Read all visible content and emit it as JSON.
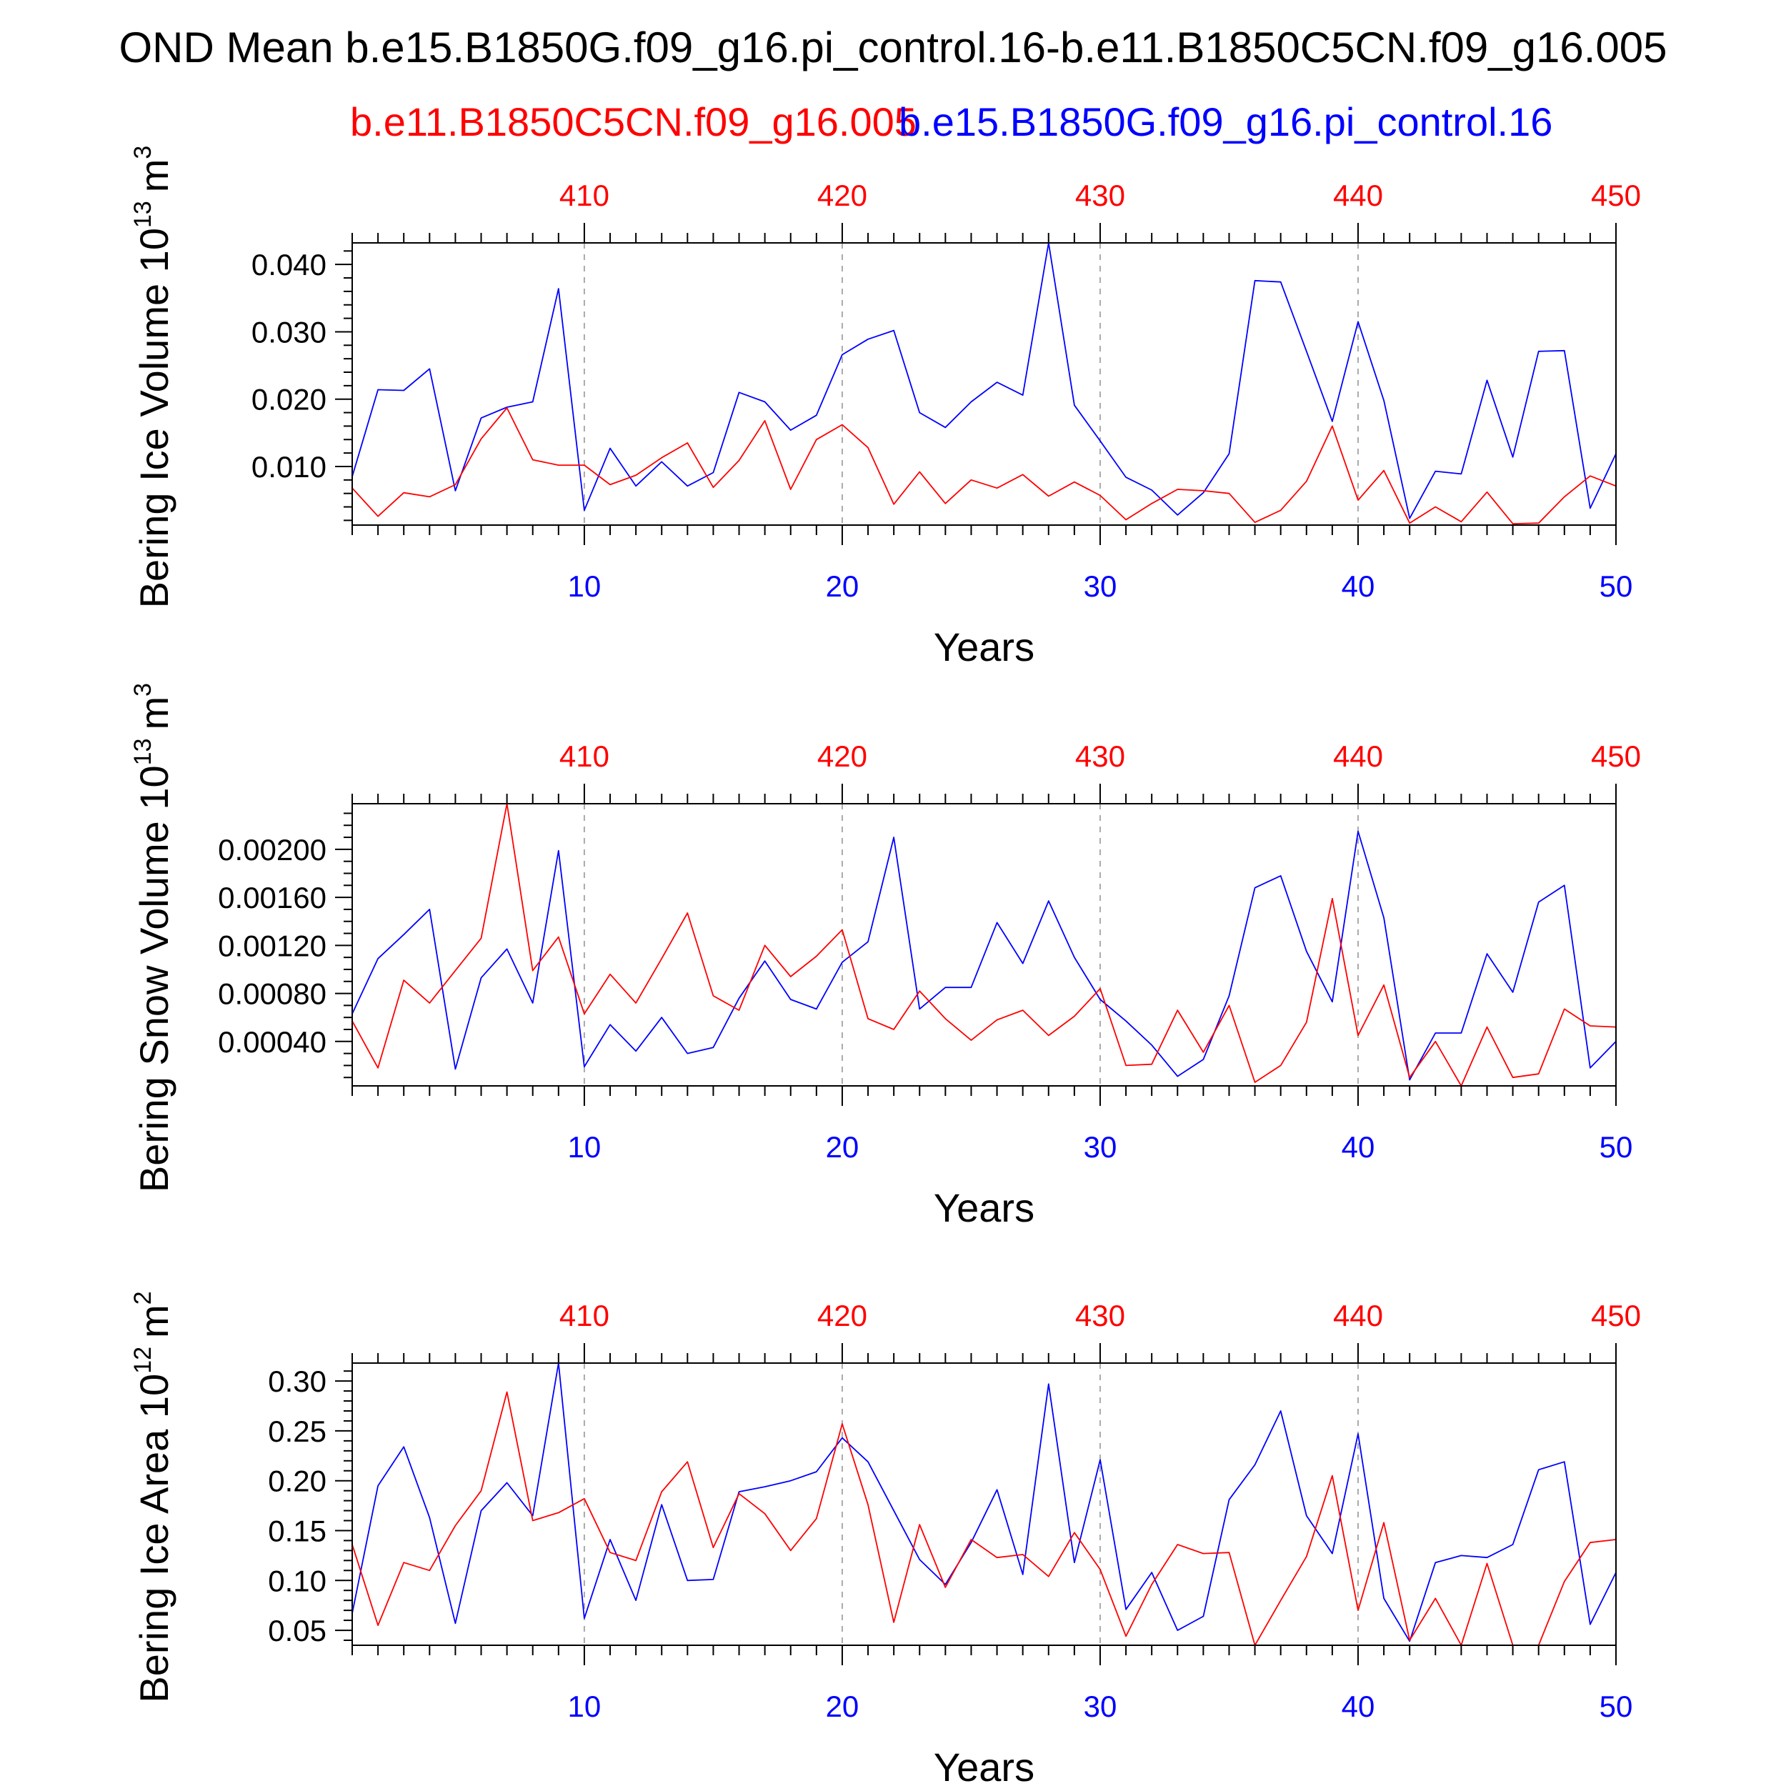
{
  "title": "OND Mean b.e15.B1850G.f09_g16.pi_control.16-b.e11.B1850C5CN.f09_g16.005",
  "legend": {
    "red_label": "b.e11.B1850C5CN.f09_g16.005",
    "blue_label": "b.e15.B1850G.f09_g16.pi_control.16"
  },
  "colors": {
    "red": "#ff0000",
    "blue": "#0000ff",
    "axis": "#000000",
    "grid": "#aaaaaa"
  },
  "chart_data": [
    {
      "type": "line",
      "title": "",
      "ylabel": "Bering Ice Volume 10",
      "ylabel_exp": "13",
      "ylabel_unit": "m",
      "ylabel_unit_exp": "3",
      "xlabel": "Years",
      "xlim": [
        1,
        50
      ],
      "ylim": [
        0.0013,
        0.0432
      ],
      "yticks": [
        0.01,
        0.02,
        0.03,
        0.04
      ],
      "ytick_labels": [
        "0.010",
        "0.020",
        "0.030",
        "0.040"
      ],
      "yminor_step": 0.002,
      "xticks": [
        10,
        20,
        30,
        40,
        50
      ],
      "xtick_labels_bottom": [
        "10",
        "20",
        "30",
        "40",
        "50"
      ],
      "xtick_labels_top": [
        "410",
        "420",
        "430",
        "440",
        "450"
      ],
      "grid": "dashed vertical at decades",
      "x": [
        1,
        2,
        3,
        4,
        5,
        6,
        7,
        8,
        9,
        10,
        11,
        12,
        13,
        14,
        15,
        16,
        17,
        18,
        19,
        20,
        21,
        22,
        23,
        24,
        25,
        26,
        27,
        28,
        29,
        30,
        31,
        32,
        33,
        34,
        35,
        36,
        37,
        38,
        39,
        40,
        41,
        42,
        43,
        44,
        45,
        46,
        47,
        48,
        49,
        50
      ],
      "series": [
        {
          "name": "b.e15.B1850G.f09_g16.pi_control.16",
          "color": "blue",
          "values": [
            0.0085,
            0.0214,
            0.0213,
            0.0245,
            0.0064,
            0.0172,
            0.0188,
            0.0196,
            0.0364,
            0.0035,
            0.0127,
            0.0071,
            0.0107,
            0.0071,
            0.0091,
            0.021,
            0.0196,
            0.0154,
            0.0176,
            0.0266,
            0.0289,
            0.0302,
            0.018,
            0.0158,
            0.0196,
            0.0225,
            0.0206,
            0.0432,
            0.0191,
            0.0138,
            0.0084,
            0.0065,
            0.0028,
            0.0061,
            0.0119,
            0.0376,
            0.0374,
            0.0271,
            0.0167,
            0.0315,
            0.0198,
            0.0023,
            0.0093,
            0.0089,
            0.0228,
            0.0114,
            0.0271,
            0.0272,
            0.0038,
            0.0119
          ]
        },
        {
          "name": "b.e11.B1850C5CN.f09_g16.005",
          "color": "red",
          "values": [
            0.0068,
            0.0026,
            0.0061,
            0.0055,
            0.0073,
            0.0141,
            0.0187,
            0.011,
            0.0102,
            0.0102,
            0.0073,
            0.0087,
            0.0113,
            0.0135,
            0.0069,
            0.0109,
            0.0168,
            0.0066,
            0.014,
            0.0162,
            0.0128,
            0.0044,
            0.0092,
            0.0045,
            0.008,
            0.0068,
            0.0088,
            0.0056,
            0.0077,
            0.0057,
            0.0021,
            0.0045,
            0.0066,
            0.0064,
            0.006,
            0.0017,
            0.0035,
            0.0078,
            0.016,
            0.005,
            0.0094,
            0.0016,
            0.004,
            0.0018,
            0.0062,
            0.0015,
            0.0016,
            0.0055,
            0.0086,
            0.0071
          ]
        }
      ]
    },
    {
      "type": "line",
      "title": "",
      "ylabel": "Bering Snow Volume 10",
      "ylabel_exp": "13",
      "ylabel_unit": "m",
      "ylabel_unit_exp": "3",
      "xlabel": "Years",
      "xlim": [
        1,
        50
      ],
      "ylim": [
        3e-05,
        0.00238
      ],
      "yticks": [
        0.0004,
        0.0008,
        0.0012,
        0.0016,
        0.002
      ],
      "ytick_labels": [
        "0.00040",
        "0.00080",
        "0.00120",
        "0.00160",
        "0.00200"
      ],
      "yminor_step": 0.0001,
      "xticks": [
        10,
        20,
        30,
        40,
        50
      ],
      "xtick_labels_bottom": [
        "10",
        "20",
        "30",
        "40",
        "50"
      ],
      "xtick_labels_top": [
        "410",
        "420",
        "430",
        "440",
        "450"
      ],
      "grid": "dashed vertical at decades",
      "x": [
        1,
        2,
        3,
        4,
        5,
        6,
        7,
        8,
        9,
        10,
        11,
        12,
        13,
        14,
        15,
        16,
        17,
        18,
        19,
        20,
        21,
        22,
        23,
        24,
        25,
        26,
        27,
        28,
        29,
        30,
        31,
        32,
        33,
        34,
        35,
        36,
        37,
        38,
        39,
        40,
        41,
        42,
        43,
        44,
        45,
        46,
        47,
        48,
        49,
        50
      ],
      "series": [
        {
          "name": "b.e15.B1850G.f09_g16.pi_control.16",
          "color": "blue",
          "values": [
            0.00063,
            0.00109,
            0.00129,
            0.0015,
            0.00017,
            0.00093,
            0.00117,
            0.00072,
            0.00199,
            0.00019,
            0.00054,
            0.00032,
            0.0006,
            0.0003,
            0.00035,
            0.00076,
            0.00107,
            0.00075,
            0.00067,
            0.00106,
            0.00123,
            0.0021,
            0.00067,
            0.00085,
            0.00085,
            0.00139,
            0.00105,
            0.00157,
            0.0011,
            0.00075,
            0.00057,
            0.00037,
            0.00011,
            0.00025,
            0.00078,
            0.00168,
            0.00178,
            0.00115,
            0.00073,
            0.00215,
            0.00143,
            8e-05,
            0.00047,
            0.00047,
            0.00113,
            0.00081,
            0.00156,
            0.0017,
            0.00018,
            0.0004
          ]
        },
        {
          "name": "b.e11.B1850C5CN.f09_g16.005",
          "color": "red",
          "values": [
            0.00057,
            0.00018,
            0.00091,
            0.00072,
            0.00099,
            0.00126,
            0.00238,
            0.00099,
            0.00127,
            0.00063,
            0.00096,
            0.00072,
            0.00109,
            0.00147,
            0.00078,
            0.00066,
            0.0012,
            0.00094,
            0.00111,
            0.00133,
            0.00059,
            0.0005,
            0.00082,
            0.00059,
            0.00041,
            0.00058,
            0.00066,
            0.00045,
            0.00061,
            0.00084,
            0.0002,
            0.00021,
            0.00066,
            0.00031,
            0.0007,
            6e-05,
            0.0002,
            0.00056,
            0.00159,
            0.00045,
            0.00087,
            0.0001,
            0.0004,
            3e-05,
            0.00052,
            0.0001,
            0.00013,
            0.00067,
            0.00053,
            0.00052
          ]
        }
      ]
    },
    {
      "type": "line",
      "title": "",
      "ylabel": "Bering Ice Area 10",
      "ylabel_exp": "12",
      "ylabel_unit": "m",
      "ylabel_unit_exp": "2",
      "xlabel": "Years",
      "xlim": [
        1,
        50
      ],
      "ylim": [
        0.035,
        0.318
      ],
      "yticks": [
        0.05,
        0.1,
        0.15,
        0.2,
        0.25,
        0.3
      ],
      "ytick_labels": [
        "0.05",
        "0.10",
        "0.15",
        "0.20",
        "0.25",
        "0.30"
      ],
      "yminor_step": 0.01,
      "xticks": [
        10,
        20,
        30,
        40,
        50
      ],
      "xtick_labels_bottom": [
        "10",
        "20",
        "30",
        "40",
        "50"
      ],
      "xtick_labels_top": [
        "410",
        "420",
        "430",
        "440",
        "450"
      ],
      "grid": "dashed vertical at decades",
      "x": [
        1,
        2,
        3,
        4,
        5,
        6,
        7,
        8,
        9,
        10,
        11,
        12,
        13,
        14,
        15,
        16,
        17,
        18,
        19,
        20,
        21,
        22,
        23,
        24,
        25,
        26,
        27,
        28,
        29,
        30,
        31,
        32,
        33,
        34,
        35,
        36,
        37,
        38,
        39,
        40,
        41,
        42,
        43,
        44,
        45,
        46,
        47,
        48,
        49,
        50
      ],
      "series": [
        {
          "name": "b.e15.B1850G.f09_g16.pi_control.16",
          "color": "blue",
          "values": [
            0.067,
            0.195,
            0.234,
            0.163,
            0.057,
            0.17,
            0.198,
            0.165,
            0.318,
            0.062,
            0.141,
            0.08,
            0.176,
            0.1,
            0.101,
            0.189,
            0.194,
            0.2,
            0.209,
            0.243,
            0.219,
            0.17,
            0.121,
            0.096,
            0.138,
            0.191,
            0.106,
            0.297,
            0.118,
            0.221,
            0.071,
            0.108,
            0.05,
            0.064,
            0.181,
            0.216,
            0.27,
            0.165,
            0.127,
            0.247,
            0.082,
            0.039,
            0.118,
            0.125,
            0.123,
            0.136,
            0.211,
            0.219,
            0.056,
            0.108
          ]
        },
        {
          "name": "b.e11.B1850C5CN.f09_g16.005",
          "color": "red",
          "values": [
            0.136,
            0.055,
            0.118,
            0.11,
            0.155,
            0.19,
            0.289,
            0.16,
            0.168,
            0.182,
            0.128,
            0.12,
            0.189,
            0.219,
            0.133,
            0.187,
            0.167,
            0.13,
            0.162,
            0.257,
            0.176,
            0.058,
            0.156,
            0.093,
            0.141,
            0.123,
            0.126,
            0.104,
            0.148,
            0.111,
            0.044,
            0.096,
            0.136,
            0.127,
            0.128,
            0.035,
            0.08,
            0.124,
            0.205,
            0.07,
            0.158,
            0.04,
            0.082,
            0.035,
            0.117,
            0.035,
            0.035,
            0.099,
            0.138,
            0.141
          ]
        }
      ]
    }
  ]
}
